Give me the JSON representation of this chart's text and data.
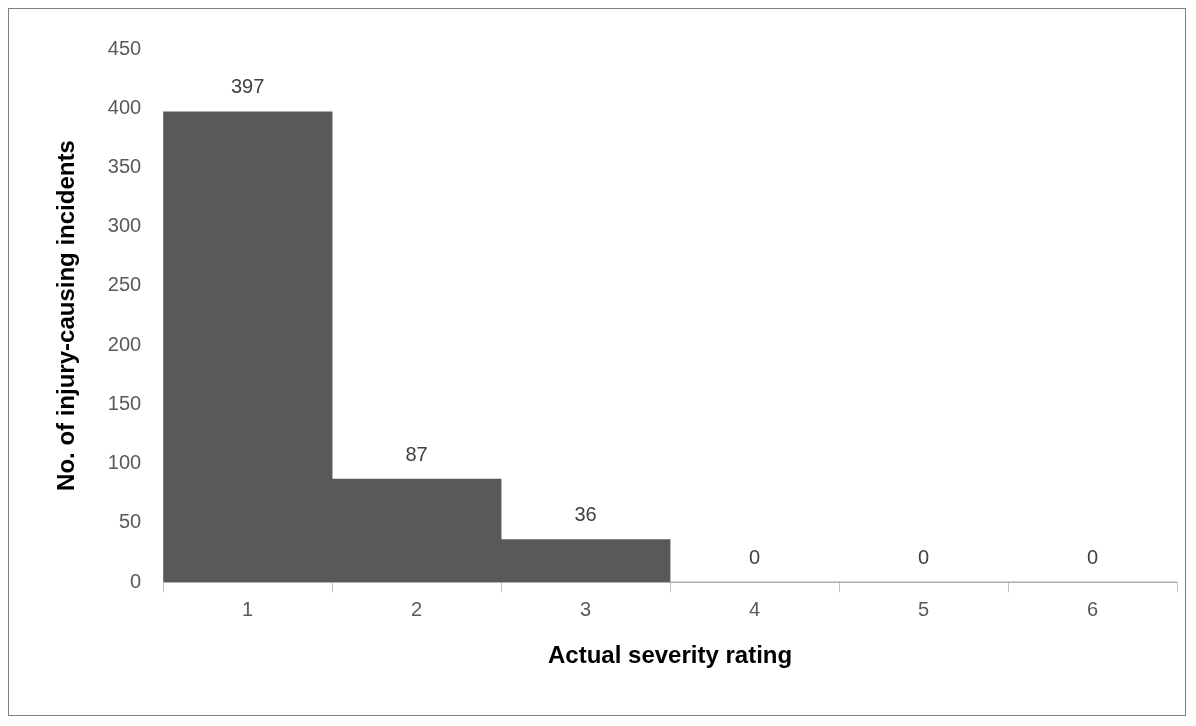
{
  "chart_data": {
    "type": "bar",
    "xlabel": "Actual severity rating",
    "ylabel": "No. of injury-causing incidents",
    "categories": [
      "1",
      "2",
      "3",
      "4",
      "5",
      "6"
    ],
    "values": [
      397,
      87,
      36,
      0,
      0,
      0
    ],
    "color": "#595959",
    "ylim": [
      0,
      450
    ],
    "yticks": [
      0,
      50,
      100,
      150,
      200,
      250,
      300,
      350,
      400,
      450
    ],
    "grid": false,
    "legend": false,
    "data_labels": true
  }
}
